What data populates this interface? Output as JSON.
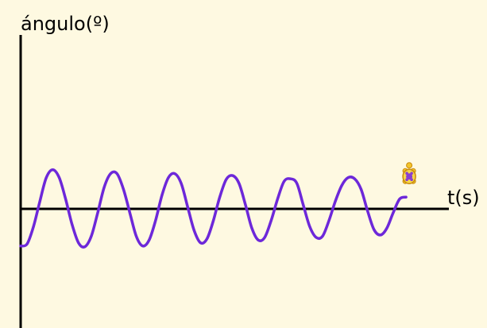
{
  "chart_data": {
    "type": "line",
    "xlabel": "t(s)",
    "ylabel": "ángulo(º)",
    "grid": false,
    "legend": "none",
    "xlim": [
      0,
      10
    ],
    "ylim": [
      -3,
      4.5
    ],
    "series": [
      {
        "color": "#6d28d9",
        "x": [
          0.0,
          0.15,
          0.3,
          0.45,
          0.6,
          0.75,
          0.9,
          1.05,
          1.2,
          1.35,
          1.5,
          1.65,
          1.8,
          1.95,
          2.1,
          2.25,
          2.4,
          2.55,
          2.7,
          2.85,
          3.0,
          3.15,
          3.3,
          3.45,
          3.6,
          3.75,
          3.9,
          4.05,
          4.2,
          4.35,
          4.5,
          4.65,
          4.8,
          4.95,
          5.1,
          5.25,
          5.4,
          5.55,
          5.7,
          5.85,
          6.0,
          6.15,
          6.3,
          6.45,
          6.6,
          6.75,
          6.9,
          7.05,
          7.2,
          7.35,
          7.5,
          7.65,
          7.8,
          7.95,
          8.1,
          8.25,
          8.4,
          8.55,
          8.7,
          8.85,
          9.0
        ],
        "y": [
          -0.9,
          -0.85,
          -0.4,
          0.25,
          0.85,
          1.05,
          0.85,
          0.3,
          -0.35,
          -0.82,
          -0.92,
          -0.65,
          -0.05,
          0.6,
          0.95,
          0.95,
          0.55,
          -0.05,
          -0.65,
          -0.9,
          -0.75,
          -0.25,
          0.4,
          0.85,
          0.95,
          0.7,
          0.1,
          -0.5,
          -0.82,
          -0.72,
          -0.25,
          0.35,
          0.8,
          0.9,
          0.7,
          0.15,
          -0.45,
          -0.75,
          -0.68,
          -0.25,
          0.3,
          0.75,
          0.82,
          0.7,
          0.15,
          -0.4,
          -0.68,
          -0.65,
          -0.25,
          0.25,
          0.65,
          0.85,
          0.82,
          0.55,
          0.0,
          -0.48,
          -0.62,
          -0.45,
          -0.05,
          0.3,
          0.35
        ]
      }
    ],
    "marker_icon": "turtle-icon"
  }
}
